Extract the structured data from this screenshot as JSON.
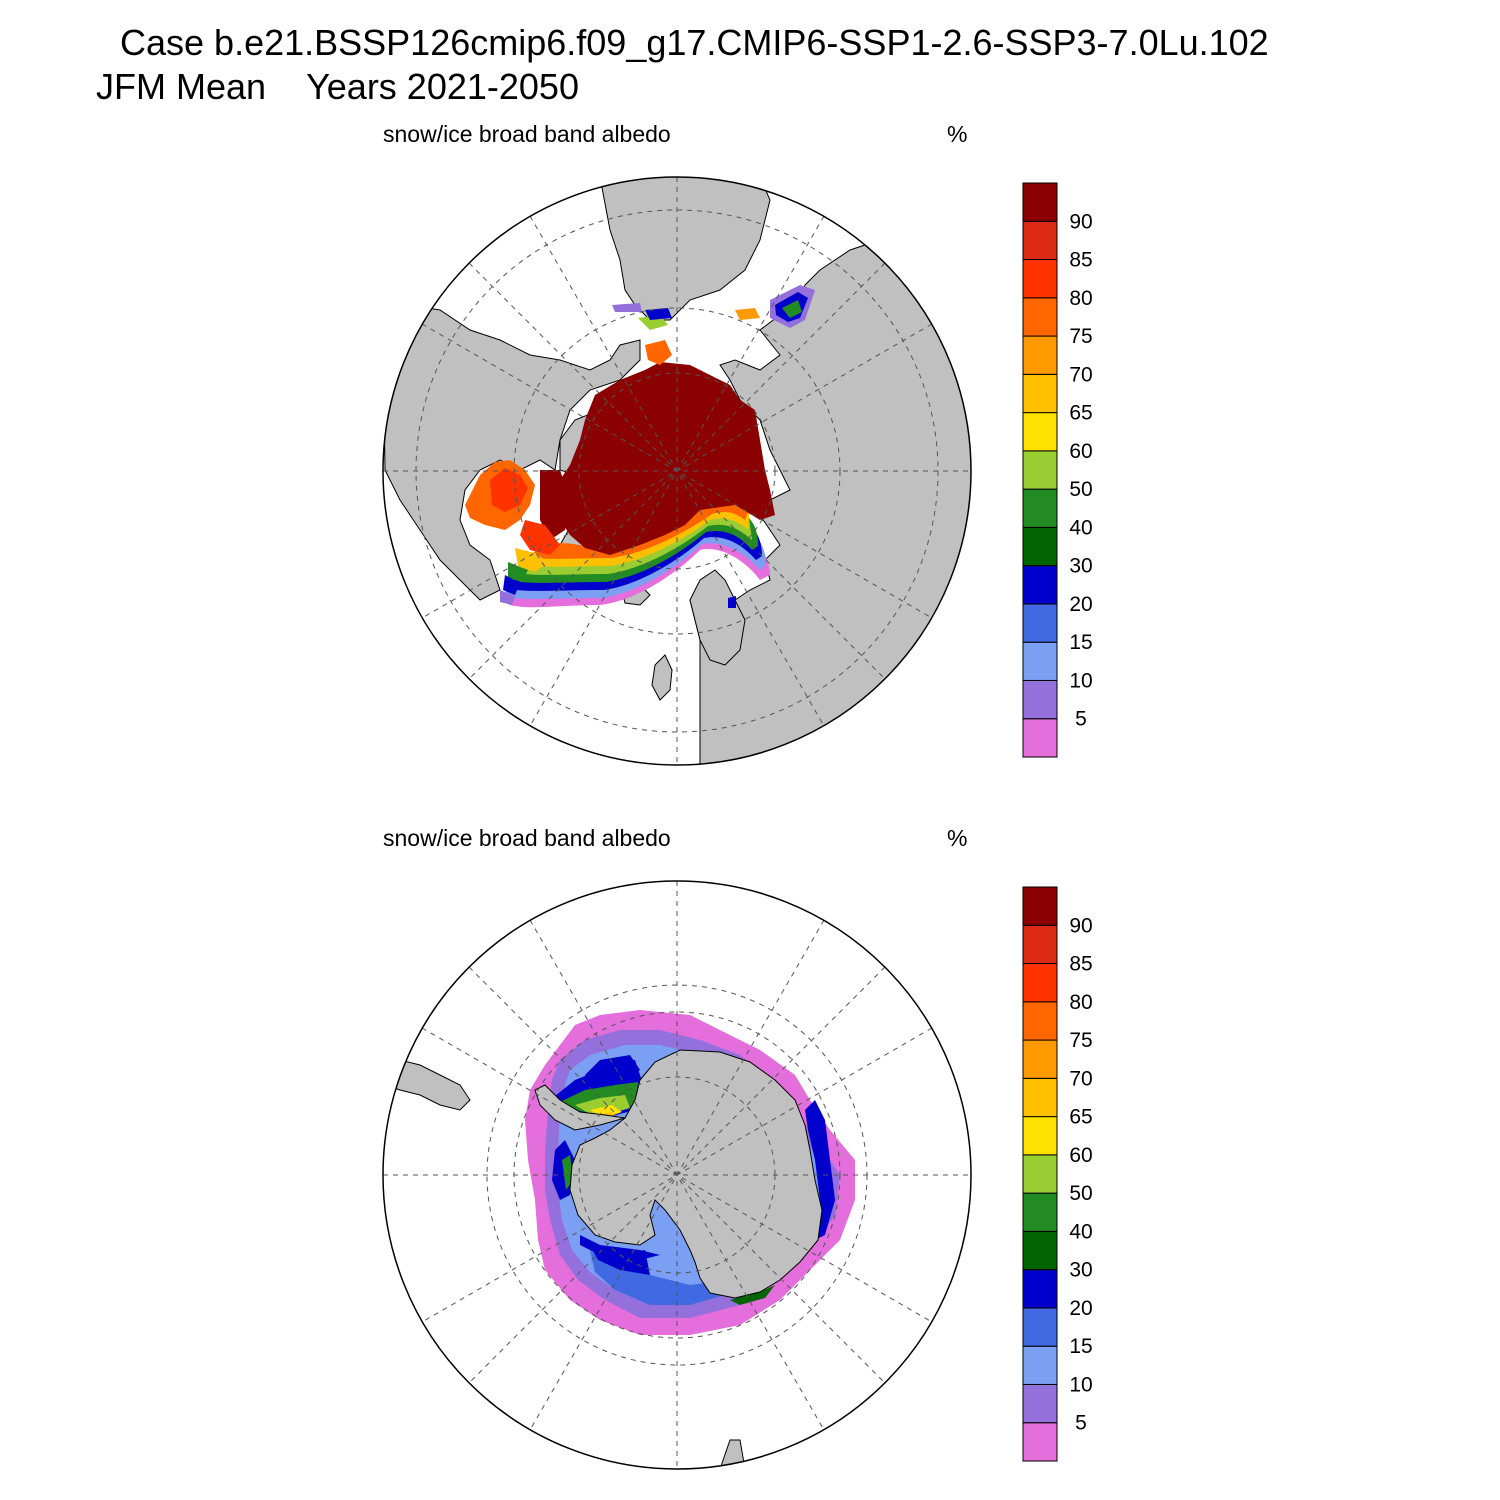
{
  "title": {
    "line1": "Case b.e21.BSSP126cmip6.f09_g17.CMIP6-SSP1-2.6-SSP3-7.0Lu.102",
    "line2_period": "JFM Mean",
    "line2_years": "Years 2021-2050"
  },
  "colorbar": {
    "colors": [
      "#e46fdc",
      "#9370db",
      "#7b9ff3",
      "#4169e1",
      "#0000cd",
      "#006400",
      "#228b22",
      "#9acd32",
      "#ffe100",
      "#ffc000",
      "#ff9900",
      "#ff6600",
      "#ff3300",
      "#dc2a14",
      "#8b0000"
    ],
    "labels": [
      "5",
      "10",
      "15",
      "20",
      "30",
      "40",
      "50",
      "60",
      "65",
      "70",
      "75",
      "80",
      "85",
      "90"
    ]
  },
  "panels": [
    {
      "name": "arctic",
      "variable": "snow/ice broad band albedo",
      "units": "%",
      "hemisphere": "north"
    },
    {
      "name": "antarctic",
      "variable": "snow/ice broad band albedo",
      "units": "%",
      "hemisphere": "south"
    }
  ],
  "colors": {
    "land": "#c0c0c0",
    "ocean": "#ffffff",
    "coast": "#000000",
    "grid": "#555555"
  }
}
